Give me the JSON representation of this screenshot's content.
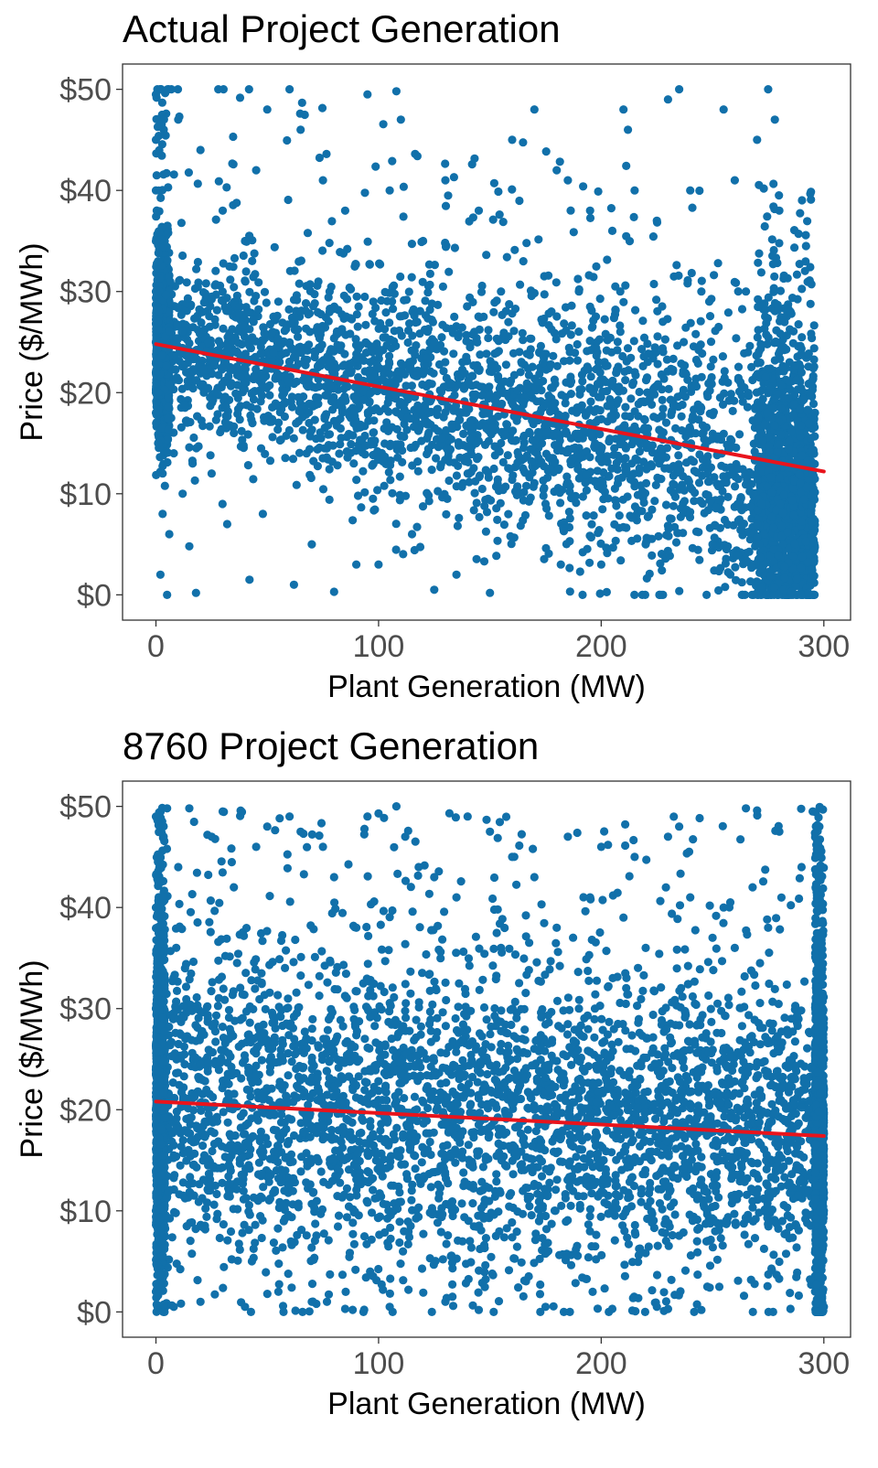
{
  "chart_data": [
    {
      "type": "scatter",
      "title": "Actual Project Generation",
      "xlabel": "Plant Generation (MW)",
      "ylabel": "Price ($/MWh)",
      "xlim": [
        -15,
        312
      ],
      "ylim": [
        -2.5,
        52.5
      ],
      "xticks": [
        0,
        100,
        200,
        300
      ],
      "xtick_labels": [
        "0",
        "100",
        "200",
        "300"
      ],
      "yticks": [
        0,
        10,
        20,
        30,
        40,
        50
      ],
      "ytick_labels": [
        "$0",
        "$10",
        "$20",
        "$30",
        "$40",
        "$50"
      ],
      "point_color": "#1170aa",
      "fit_color": "#e8141c",
      "series": [
        {
          "name": "observations",
          "points": [
            [
              0,
              18
            ],
            [
              0,
              22
            ],
            [
              0,
              25
            ],
            [
              0,
              30
            ],
            [
              0,
              35
            ],
            [
              0,
              40
            ],
            [
              0,
              45
            ],
            [
              0,
              49.5
            ],
            [
              1,
              15
            ],
            [
              1,
              20
            ],
            [
              1,
              27
            ],
            [
              1,
              33
            ],
            [
              2,
              2
            ],
            [
              3,
              12
            ],
            [
              3,
              8
            ],
            [
              5,
              0
            ],
            [
              6,
              6
            ],
            [
              8,
              14
            ],
            [
              10,
              47
            ],
            [
              12,
              10
            ],
            [
              15,
              4.8
            ],
            [
              18,
              0.2
            ],
            [
              20,
              44
            ],
            [
              25,
              12
            ],
            [
              28,
              50
            ],
            [
              30,
              38
            ],
            [
              32,
              7
            ],
            [
              35,
              16
            ],
            [
              40,
              35
            ],
            [
              42,
              1.5
            ],
            [
              45,
              42
            ],
            [
              48,
              8
            ],
            [
              50,
              48
            ],
            [
              55,
              29
            ],
            [
              60,
              50
            ],
            [
              62,
              1
            ],
            [
              65,
              46
            ],
            [
              70,
              5
            ],
            [
              75,
              41
            ],
            [
              78,
              30
            ],
            [
              80,
              0.3
            ],
            [
              85,
              38
            ],
            [
              90,
              3
            ],
            [
              95,
              49.5
            ],
            [
              100,
              3
            ],
            [
              105,
              40
            ],
            [
              108,
              49.8
            ],
            [
              110,
              47
            ],
            [
              115,
              6
            ],
            [
              120,
              35
            ],
            [
              125,
              0.5
            ],
            [
              130,
              41
            ],
            [
              135,
              2
            ],
            [
              140,
              12
            ],
            [
              145,
              38
            ],
            [
              150,
              0.2
            ],
            [
              155,
              30
            ],
            [
              160,
              45
            ],
            [
              165,
              33
            ],
            [
              170,
              48
            ],
            [
              175,
              9
            ],
            [
              180,
              42
            ],
            [
              185,
              41
            ],
            [
              190,
              30
            ],
            [
              195,
              38
            ],
            [
              200,
              3
            ],
            [
              205,
              36
            ],
            [
              210,
              48
            ],
            [
              212,
              46
            ],
            [
              215,
              40
            ],
            [
              220,
              5
            ],
            [
              225,
              37
            ],
            [
              230,
              49
            ],
            [
              235,
              50
            ],
            [
              240,
              40
            ],
            [
              245,
              30
            ],
            [
              250,
              5
            ],
            [
              255,
              48
            ],
            [
              260,
              41
            ],
            [
              265,
              30
            ],
            [
              270,
              45
            ],
            [
              275,
              50
            ],
            [
              278,
              47
            ],
            [
              280,
              38
            ],
            [
              285,
              28
            ],
            [
              290,
              22
            ],
            [
              292,
              34.5
            ],
            [
              293,
              0.2
            ],
            [
              295,
              12
            ],
            [
              296,
              18
            ]
          ]
        }
      ],
      "trend_line": {
        "x": [
          0,
          300
        ],
        "y": [
          24.8,
          12.2
        ]
      }
    },
    {
      "type": "scatter",
      "title": "8760 Project Generation",
      "xlabel": "Plant Generation (MW)",
      "ylabel": "Price ($/MWh)",
      "xlim": [
        -15,
        312
      ],
      "ylim": [
        -2.5,
        52.5
      ],
      "xticks": [
        0,
        100,
        200,
        300
      ],
      "xtick_labels": [
        "0",
        "100",
        "200",
        "300"
      ],
      "yticks": [
        0,
        10,
        20,
        30,
        40,
        50
      ],
      "ytick_labels": [
        "$0",
        "$10",
        "$20",
        "$30",
        "$40",
        "$50"
      ],
      "point_color": "#1170aa",
      "fit_color": "#e8141c",
      "series": [
        {
          "name": "observations",
          "points": [
            [
              0,
              2
            ],
            [
              0,
              10
            ],
            [
              0,
              20
            ],
            [
              0,
              30
            ],
            [
              0,
              40
            ],
            [
              0,
              49
            ],
            [
              2,
              45
            ],
            [
              5,
              49.8
            ],
            [
              8,
              0.5
            ],
            [
              10,
              44
            ],
            [
              15,
              49.8
            ],
            [
              20,
              1
            ],
            [
              25,
              47
            ],
            [
              30,
              49.5
            ],
            [
              35,
              42
            ],
            [
              40,
              0.5
            ],
            [
              45,
              46
            ],
            [
              50,
              48
            ],
            [
              55,
              2
            ],
            [
              60,
              49
            ],
            [
              65,
              47.5
            ],
            [
              70,
              1
            ],
            [
              75,
              46
            ],
            [
              80,
              43
            ],
            [
              85,
              0.3
            ],
            [
              90,
              38
            ],
            [
              95,
              49
            ],
            [
              100,
              49.3
            ],
            [
              105,
              0.5
            ],
            [
              108,
              50
            ],
            [
              112,
              47
            ],
            [
              118,
              44
            ],
            [
              125,
              43
            ],
            [
              130,
              1
            ],
            [
              135,
              41
            ],
            [
              140,
              49
            ],
            [
              145,
              0.2
            ],
            [
              150,
              47.5
            ],
            [
              155,
              36
            ],
            [
              160,
              45
            ],
            [
              170,
              43
            ],
            [
              175,
              0.5
            ],
            [
              180,
              38
            ],
            [
              185,
              47
            ],
            [
              190,
              30
            ],
            [
              195,
              41
            ],
            [
              200,
              46
            ],
            [
              205,
              0.3
            ],
            [
              210,
              39
            ],
            [
              215,
              45
            ],
            [
              220,
              36
            ],
            [
              225,
              0.5
            ],
            [
              230,
              47
            ],
            [
              235,
              48
            ],
            [
              240,
              41
            ],
            [
              245,
              0.2
            ],
            [
              250,
              37
            ],
            [
              255,
              40
            ],
            [
              260,
              36
            ],
            [
              265,
              49.8
            ],
            [
              268,
              42
            ],
            [
              270,
              49.6
            ],
            [
              275,
              38
            ],
            [
              280,
              47.5
            ],
            [
              285,
              0.3
            ],
            [
              290,
              44
            ],
            [
              295,
              49.5
            ],
            [
              298,
              48
            ],
            [
              300,
              25
            ],
            [
              300,
              10
            ],
            [
              300,
              0.5
            ]
          ]
        }
      ],
      "trend_line": {
        "x": [
          0,
          300
        ],
        "y": [
          20.8,
          17.4
        ]
      }
    }
  ]
}
